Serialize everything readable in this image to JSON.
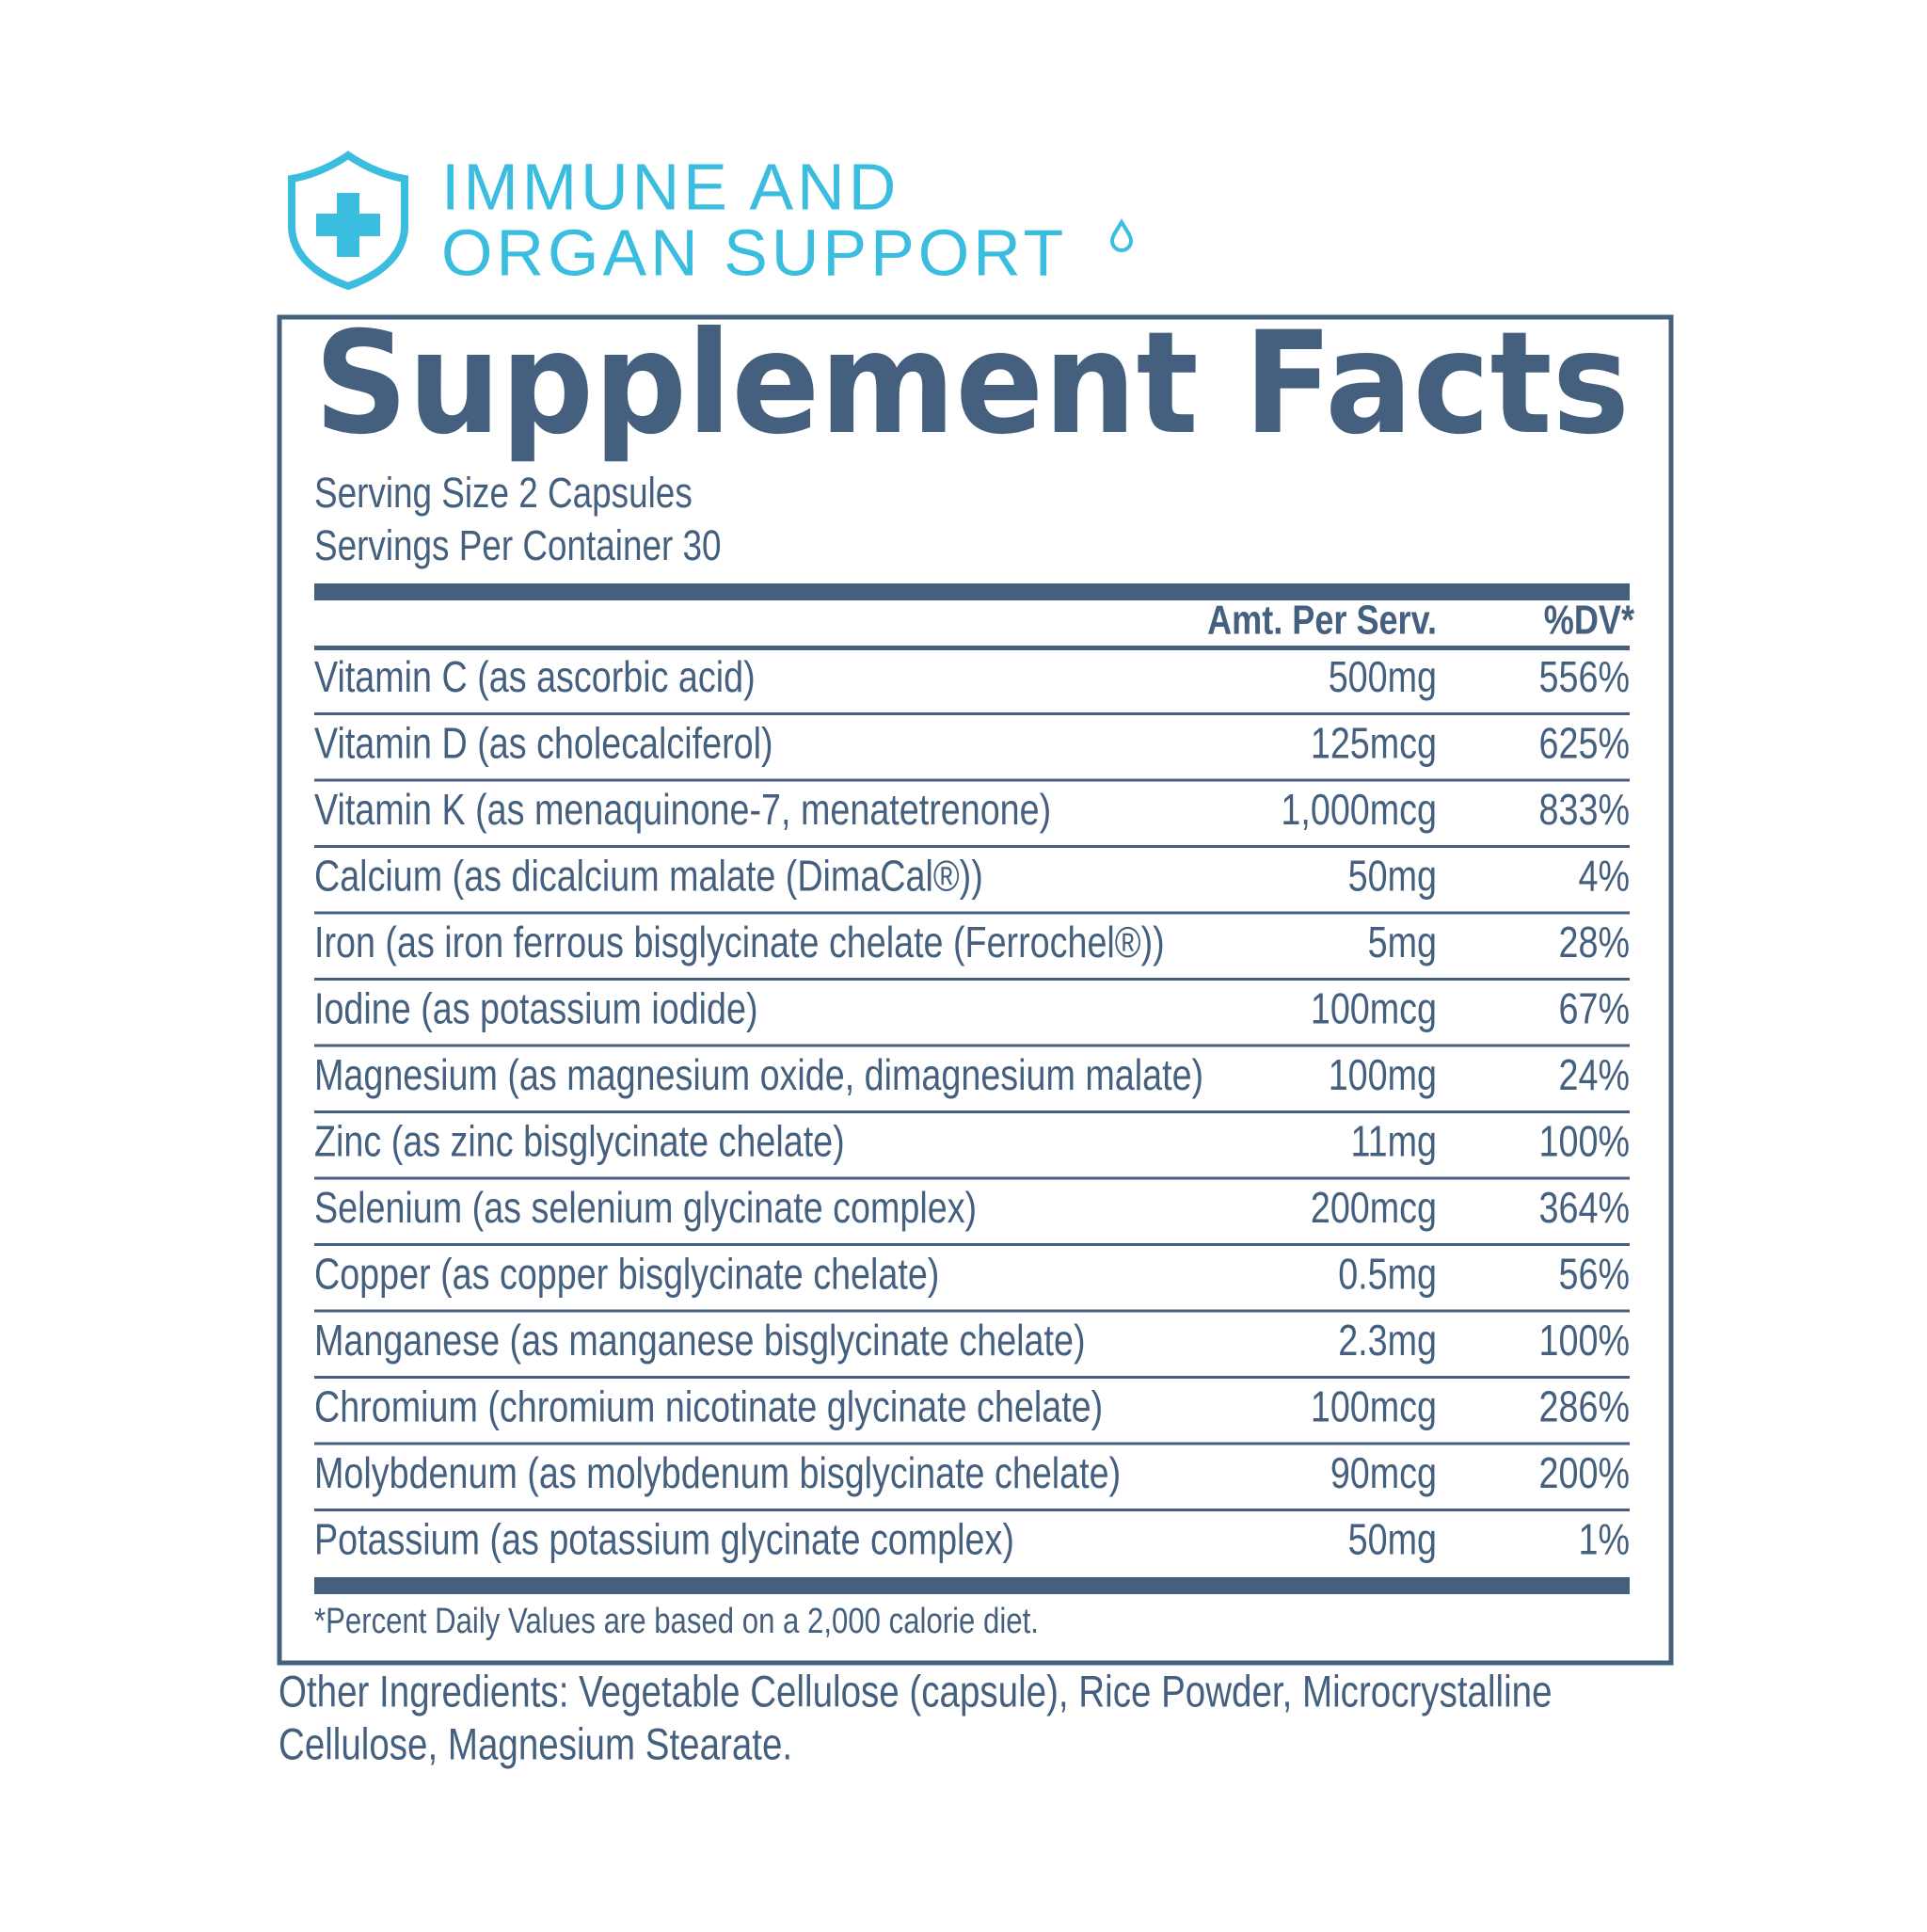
{
  "header": {
    "brand_lines": [
      "IMMUNE AND",
      "ORGAN SUPPORT"
    ]
  },
  "title": "Supplement Facts",
  "serving_size": "Serving Size 2 Capsules",
  "servings_per_container": "Servings Per Container 30",
  "table": {
    "columns": [
      "Amt. Per Serv.",
      "%DV*"
    ],
    "rows": [
      [
        "Vitamin C (as ascorbic acid)",
        "500mg",
        "556%"
      ],
      [
        "Vitamin D (as cholecalciferol)",
        "125mcg",
        "625%"
      ],
      [
        "Vitamin K (as menaquinone-7, menatetrenone)",
        "1,000mcg",
        "833%"
      ],
      [
        "Calcium (as dicalcium malate (DimaCal®))",
        "50mg",
        "4%"
      ],
      [
        "Iron (as iron ferrous bisglycinate chelate (Ferrochel®))",
        "5mg",
        "28%"
      ],
      [
        "Iodine (as potassium iodide)",
        "100mcg",
        "67%"
      ],
      [
        "Magnesium (as magnesium oxide, dimagnesium malate)",
        "100mg",
        "24%"
      ],
      [
        "Zinc (as zinc bisglycinate chelate)",
        "11mg",
        "100%"
      ],
      [
        "Selenium (as selenium glycinate complex)",
        "200mcg",
        "364%"
      ],
      [
        "Copper (as copper bisglycinate chelate)",
        "0.5mg",
        "56%"
      ],
      [
        "Manganese (as manganese bisglycinate chelate)",
        "2.3mg",
        "100%"
      ],
      [
        "Chromium (chromium nicotinate glycinate chelate)",
        "100mcg",
        "286%"
      ],
      [
        "Molybdenum (as molybdenum bisglycinate chelate)",
        "90mcg",
        "200%"
      ],
      [
        "Potassium (as potassium glycinate complex)",
        "50mg",
        "1%"
      ]
    ]
  },
  "footnote": "*Percent Daily Values are based on a 2,000 calorie diet.",
  "other_ingredients": [
    "Other Ingredients: Vegetable Cellulose (capsule), Rice Powder, Microcrystalline",
    "Cellulose, Magnesium Stearate."
  ]
}
